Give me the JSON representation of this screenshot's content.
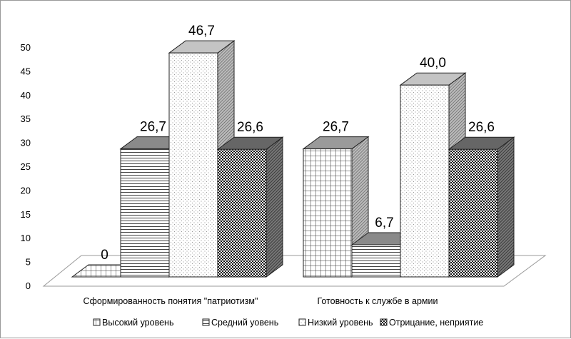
{
  "chart_data": {
    "type": "bar",
    "variant": "3d-clustered",
    "title": "",
    "xlabel": "",
    "ylabel": "",
    "ylim": [
      0,
      50
    ],
    "yticks": [
      0,
      5,
      10,
      15,
      20,
      25,
      30,
      35,
      40,
      45,
      50
    ],
    "categories": [
      "Сформированность понятия \"патриотизм\"",
      "Готовность к службе в армии"
    ],
    "series": [
      {
        "name": "Высокий уровень",
        "values": [
          0,
          26.7
        ],
        "labels": [
          "0",
          "26,7"
        ],
        "pattern": "grid"
      },
      {
        "name": "Средний уовень",
        "values": [
          26.7,
          6.7
        ],
        "labels": [
          "26,7",
          "6,7"
        ],
        "pattern": "hlines"
      },
      {
        "name": "Низкий уровень",
        "values": [
          46.7,
          40.0
        ],
        "labels": [
          "46,7",
          "40,0"
        ],
        "pattern": "dots"
      },
      {
        "name": "Отрицание, неприятие",
        "values": [
          26.6,
          26.6
        ],
        "labels": [
          "26,6",
          "26,6"
        ],
        "pattern": "checker"
      }
    ],
    "legend_position": "bottom",
    "grid": false
  }
}
